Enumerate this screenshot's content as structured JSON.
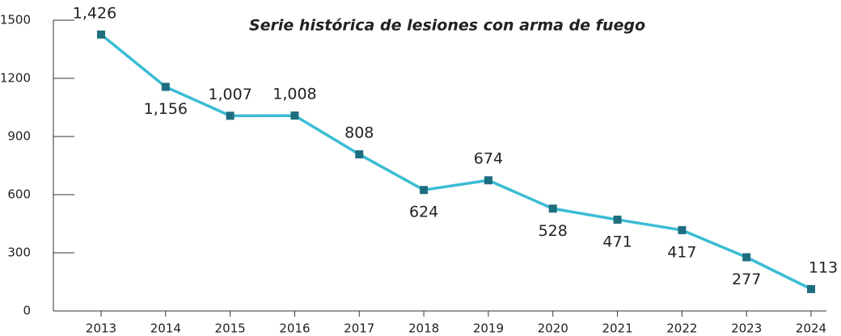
{
  "chart_data": {
    "type": "line",
    "title": "Serie histórica de lesiones con arma de fuego",
    "categories": [
      "2013",
      "2014",
      "2015",
      "2016",
      "2017",
      "2018",
      "2019",
      "2020",
      "2021",
      "2022",
      "2023",
      "2024"
    ],
    "series": [
      {
        "name": "Lesiones con arma de fuego",
        "color": "#3bbcd4",
        "marker_color": "#1f6e80",
        "values": [
          1426,
          1156,
          1007,
          1008,
          808,
          624,
          674,
          528,
          471,
          417,
          277,
          113
        ],
        "value_labels": [
          "1,426",
          "1,156",
          "1,007",
          "1,008",
          "808",
          "624",
          "674",
          "528",
          "471",
          "417",
          "277",
          "113"
        ]
      }
    ],
    "ylim": [
      0,
      1500
    ],
    "yticks": [
      0,
      300,
      600,
      900,
      1200,
      1500
    ]
  }
}
